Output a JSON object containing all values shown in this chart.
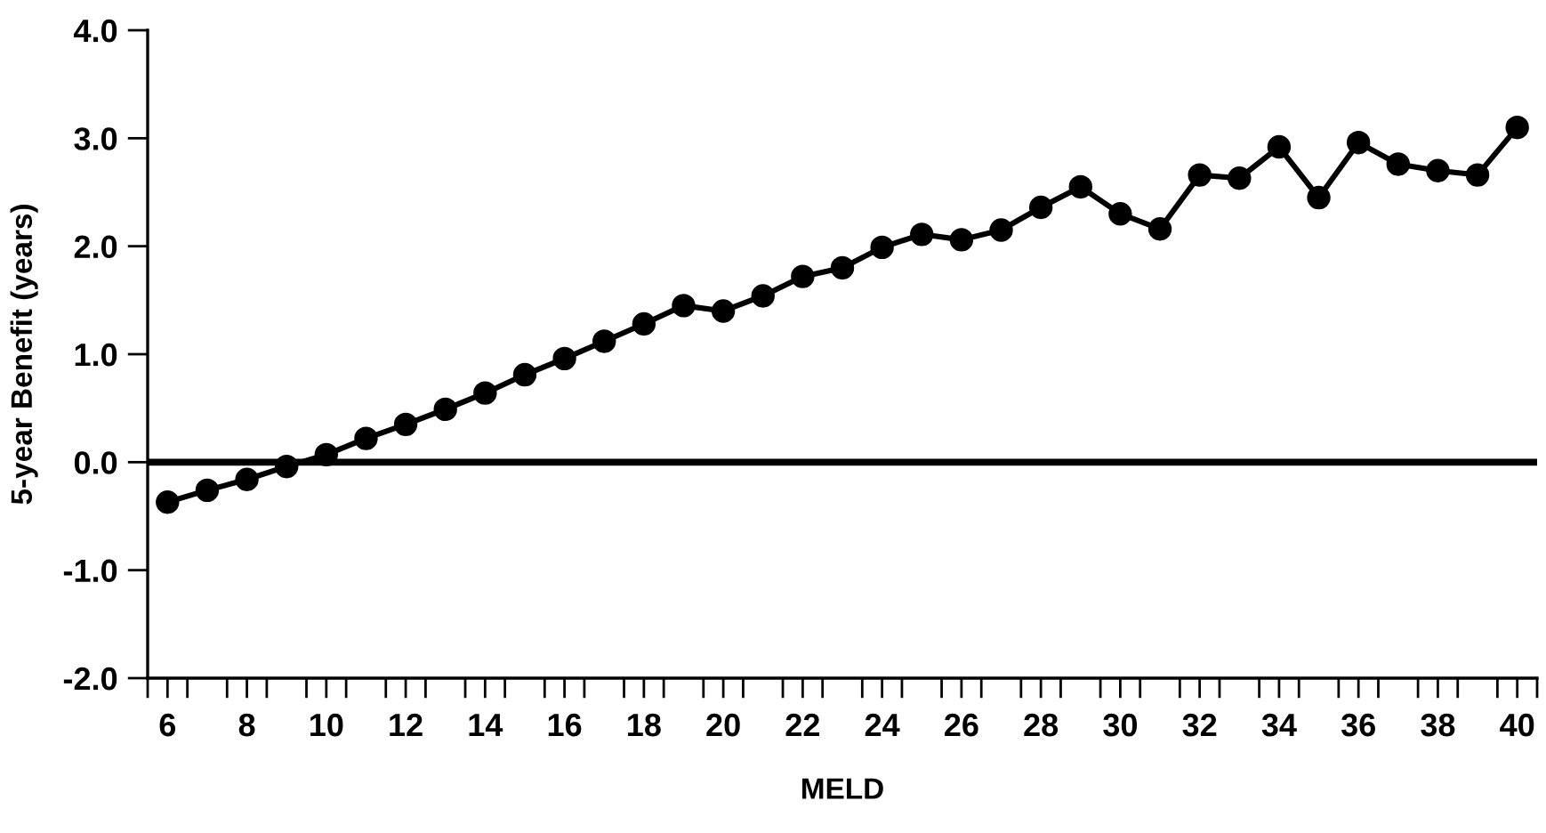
{
  "chart_data": {
    "type": "line",
    "xlabel": "MELD",
    "ylabel": "5-year Benefit (years)",
    "x": [
      6,
      7,
      8,
      9,
      10,
      11,
      12,
      13,
      14,
      15,
      16,
      17,
      18,
      19,
      20,
      21,
      22,
      23,
      24,
      25,
      26,
      27,
      28,
      29,
      30,
      31,
      32,
      33,
      34,
      35,
      36,
      37,
      38,
      39,
      40
    ],
    "series": [
      {
        "color": "#000000",
        "values": [
          -0.37,
          -0.26,
          -0.16,
          -0.04,
          0.07,
          0.22,
          0.35,
          0.49,
          0.64,
          0.81,
          0.96,
          1.12,
          1.28,
          1.45,
          1.4,
          1.54,
          1.72,
          1.8,
          1.99,
          2.11,
          2.06,
          2.15,
          2.36,
          2.55,
          2.3,
          2.16,
          2.66,
          2.63,
          2.92,
          2.45,
          2.96,
          2.76,
          2.7,
          2.66,
          3.1
        ]
      }
    ],
    "marker": "circle",
    "line_style": "solid",
    "grid": false,
    "legend": false,
    "xlim": [
      5.5,
      40.5
    ],
    "xticks": [
      {
        "value": 5.5,
        "label": null
      },
      {
        "value": 6,
        "label": "6"
      },
      {
        "value": 6.5,
        "label": null
      },
      {
        "value": 7.5,
        "label": null
      },
      {
        "value": 8,
        "label": "8"
      },
      {
        "value": 8.5,
        "label": null
      },
      {
        "value": 9.5,
        "label": null
      },
      {
        "value": 10,
        "label": "10"
      },
      {
        "value": 10.5,
        "label": null
      },
      {
        "value": 11.5,
        "label": null
      },
      {
        "value": 12,
        "label": "12"
      },
      {
        "value": 12.5,
        "label": null
      },
      {
        "value": 13.5,
        "label": null
      },
      {
        "value": 14,
        "label": "14"
      },
      {
        "value": 14.5,
        "label": null
      },
      {
        "value": 15.5,
        "label": null
      },
      {
        "value": 16,
        "label": "16"
      },
      {
        "value": 16.5,
        "label": null
      },
      {
        "value": 17.5,
        "label": null
      },
      {
        "value": 18,
        "label": "18"
      },
      {
        "value": 18.5,
        "label": null
      },
      {
        "value": 19.5,
        "label": null
      },
      {
        "value": 20,
        "label": "20"
      },
      {
        "value": 20.5,
        "label": null
      },
      {
        "value": 21.5,
        "label": null
      },
      {
        "value": 22,
        "label": "22"
      },
      {
        "value": 22.5,
        "label": null
      },
      {
        "value": 23.5,
        "label": null
      },
      {
        "value": 24,
        "label": "24"
      },
      {
        "value": 24.5,
        "label": null
      },
      {
        "value": 25.5,
        "label": null
      },
      {
        "value": 26,
        "label": "26"
      },
      {
        "value": 26.5,
        "label": null
      },
      {
        "value": 27.5,
        "label": null
      },
      {
        "value": 28,
        "label": "28"
      },
      {
        "value": 28.5,
        "label": null
      },
      {
        "value": 29.5,
        "label": null
      },
      {
        "value": 30,
        "label": "30"
      },
      {
        "value": 30.5,
        "label": null
      },
      {
        "value": 31.5,
        "label": null
      },
      {
        "value": 32,
        "label": "32"
      },
      {
        "value": 32.5,
        "label": null
      },
      {
        "value": 33.5,
        "label": null
      },
      {
        "value": 34,
        "label": "34"
      },
      {
        "value": 34.5,
        "label": null
      },
      {
        "value": 35.5,
        "label": null
      },
      {
        "value": 36,
        "label": "36"
      },
      {
        "value": 36.5,
        "label": null
      },
      {
        "value": 37.5,
        "label": null
      },
      {
        "value": 38,
        "label": "38"
      },
      {
        "value": 38.5,
        "label": null
      },
      {
        "value": 39.5,
        "label": null
      },
      {
        "value": 40,
        "label": "40"
      },
      {
        "value": 40.5,
        "label": null
      }
    ],
    "ylim": [
      -2.0,
      4.0
    ],
    "yticks": [
      {
        "value": -2,
        "label": "-2.0"
      },
      {
        "value": -1,
        "label": "-1.0"
      },
      {
        "value": 0,
        "label": "0.0"
      },
      {
        "value": 1,
        "label": "1.0"
      },
      {
        "value": 2,
        "label": "2.0"
      },
      {
        "value": 3,
        "label": "3.0"
      },
      {
        "value": 4,
        "label": "4.0"
      }
    ],
    "ref_lines": [
      {
        "axis": "y",
        "value": 0,
        "label": null,
        "color": "#000000",
        "line_style": "solid"
      }
    ]
  }
}
